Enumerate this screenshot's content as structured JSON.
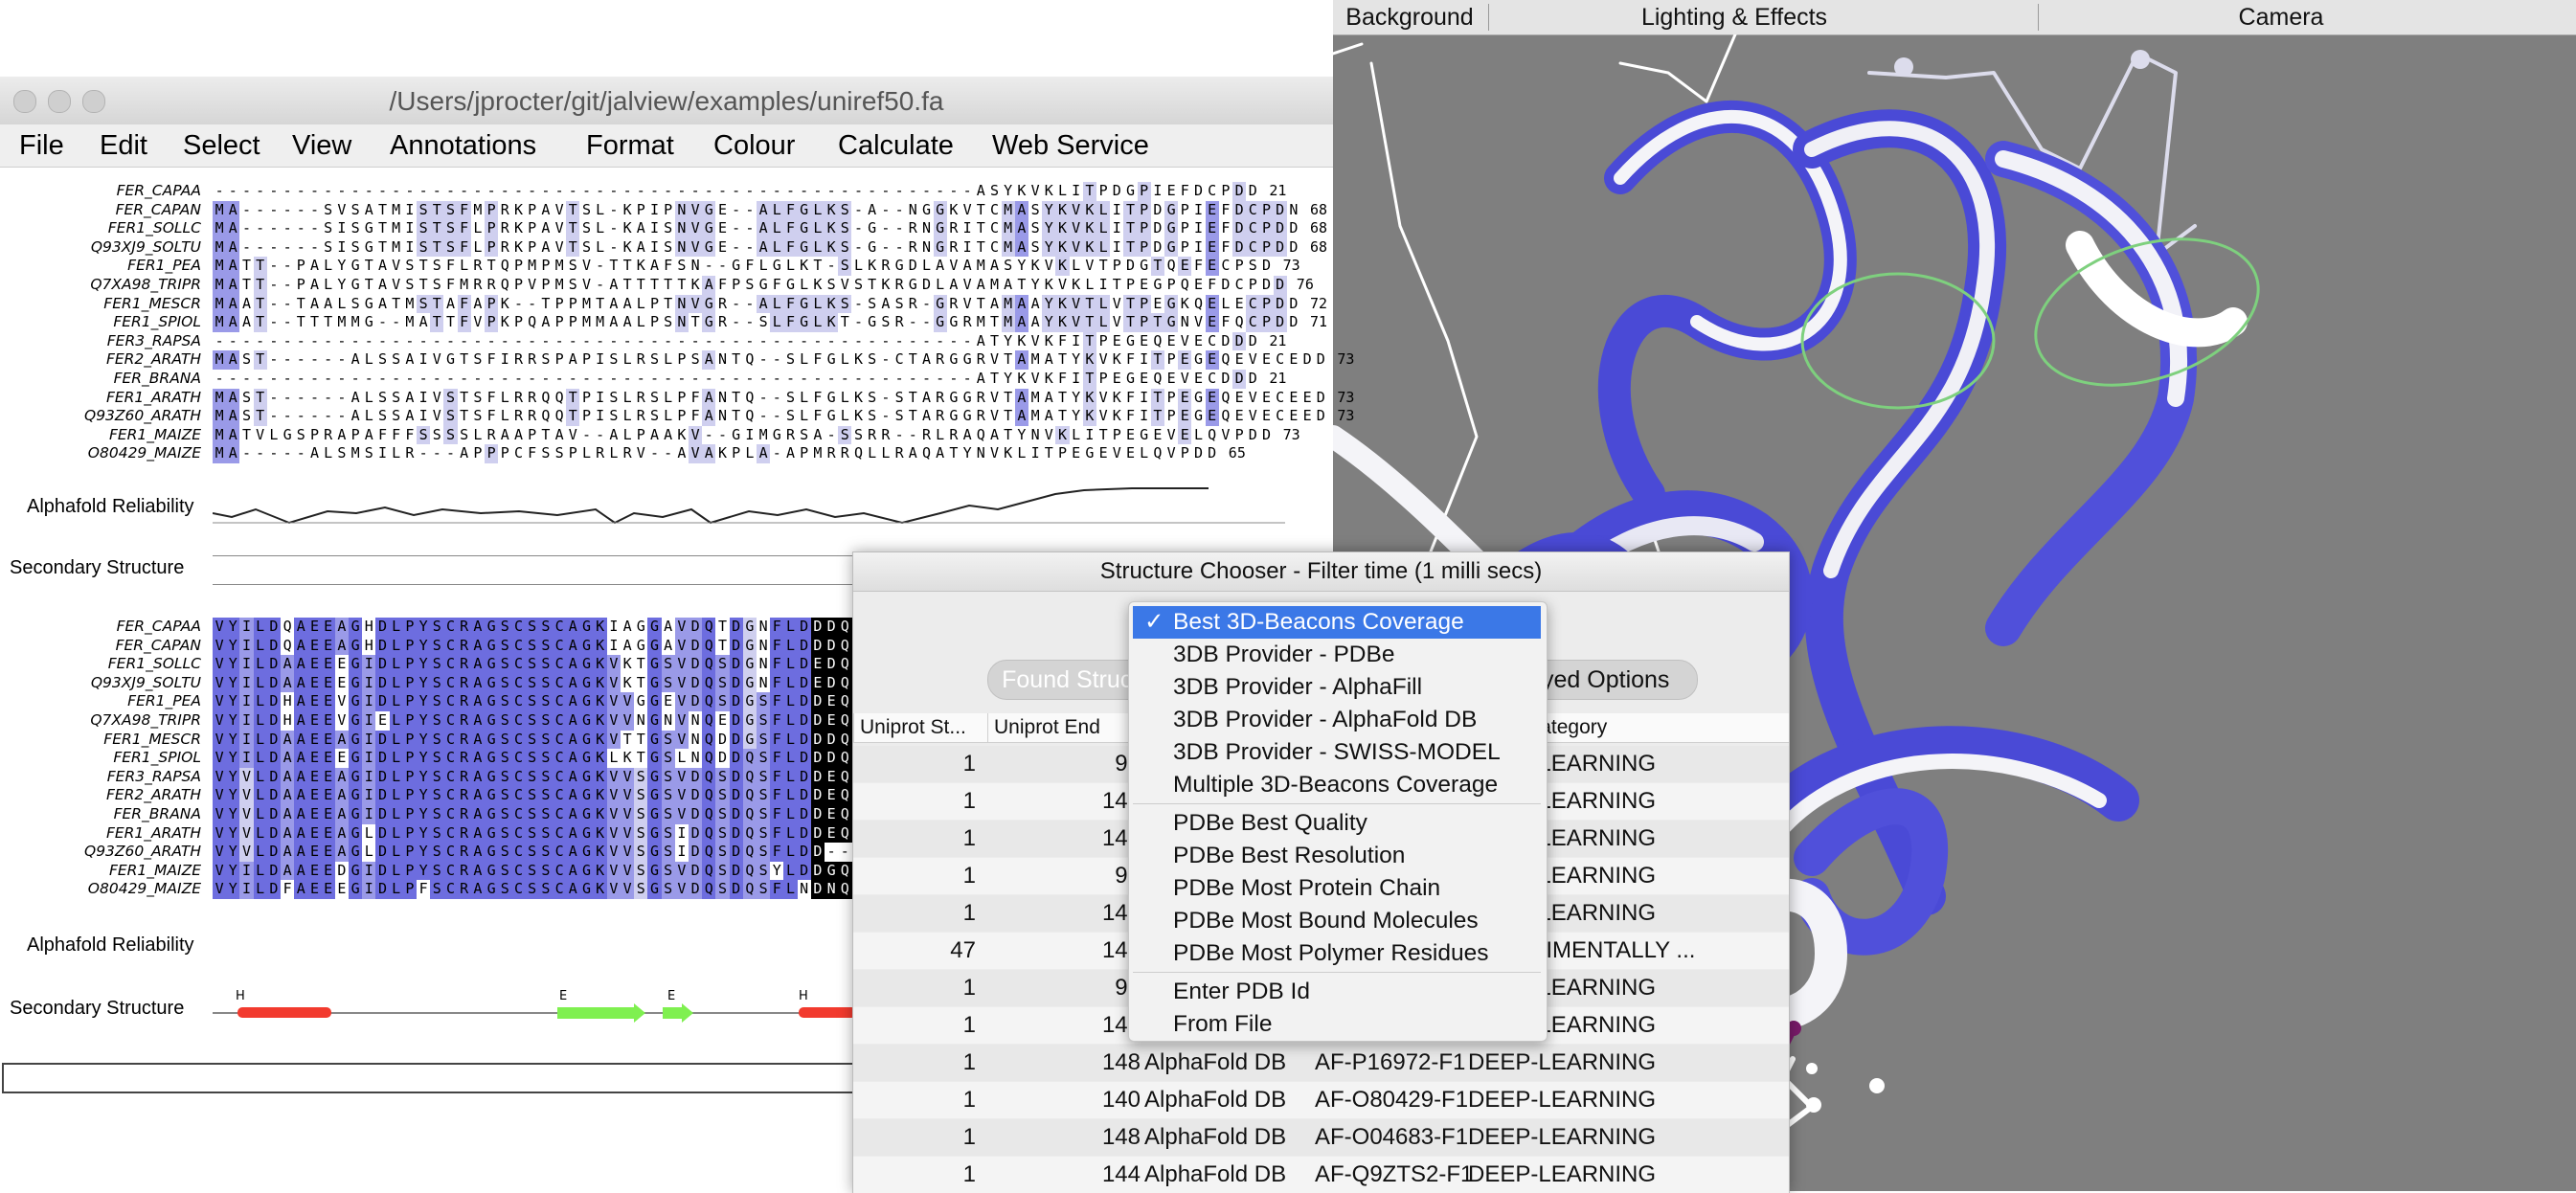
{
  "viewer": {
    "tabs": [
      "Background",
      "Lighting & Effects",
      "Camera"
    ],
    "colors": {
      "background": "#7f7f7f",
      "ribbon_blue": "#4a4ad6",
      "ribbon_white": "#f4f4f8",
      "highlight": "#7ed07e"
    }
  },
  "alignment_window": {
    "title": "/Users/jprocter/git/jalview/examples/uniref50.fa",
    "menu": [
      "File",
      "Edit",
      "Select",
      "View",
      "Annotations",
      "Format",
      "Colour",
      "Calculate",
      "Web Service"
    ],
    "block1": {
      "names": [
        "FER_CAPAA",
        "FER_CAPAN",
        "FER1_SOLLC",
        "Q93XJ9_SOLTU",
        "FER1_PEA",
        "Q7XA98_TRIPR",
        "FER1_MESCR",
        "FER1_SPIOL",
        "FER3_RAPSA",
        "FER2_ARATH",
        "FER_BRANA",
        "FER1_ARATH",
        "Q93Z60_ARATH",
        "FER1_MAIZE",
        "O80429_MAIZE"
      ],
      "rows": [
        "--------------------------------------------------------ASYKVKLITPDGPIEFDCPDD",
        "MA------SVSATMISTSFMPRKPAVTSL-KPIPNVGE--ALFGLKS-A--NGGKVTCMASYKVKLITPDGPIEFDCPDN",
        "MA------SISGTMISTSFLPRKPAVTSL-KAISNVGE--ALFGLKS-G--RNGRITCMASYKVKLITPDGPIEFDCPDD",
        "MA------SISGTMISTSFLPRKPAVTSL-KAISNVGE--ALFGLKS-G--RNGRITCMASYKVKLITPDGPIEFDCPDD",
        "MATT--PALYGTAVSTSFLRTQPMPMSV-TTKAFSN--GFLGLKT-SLKRGDLAVAMASYKVKLVTPDGTQEFECPSD",
        "MATT--PALYGTAVSTSFMRRQPVPMSV-ATTTTTKAFPSGFGLKSVSTKRGDLAVAMATYKVKLITPEGPQEFDCPDD",
        "MAAT--TAALSGATMSTAFAPK--TPPMTAALPTNVGR--ALFGLKS-SASR-GRVTAMAAYKVTLVTPEGKQELECPDD",
        "MAAT--TTTMMG--MATTFVPKPQAPPMMAALPSNTGR--SLFGLKT-GSR--GGRMTMAAYKVTLVTPTGNVEFQCPDD",
        "--------------------------------------------------------ATYKVKFITPEGEQEVECDDD",
        "MAST------ALSSAIVGTSFIRRSPAPISLRSLPSANTQ--SLFGLKS-CTARGGRVTAMATYKVKFITPEGEQEVECEDD",
        "--------------------------------------------------------ATYKVKFITPEGEQEVECDDD",
        "MAST------ALSSAIVSTSFLRRQQTPISLRSLPFANTQ--SLFGLKS-STARGGRVTAMATYKVKFITPEGEQEVECEED",
        "MAST------ALSSAIVSTSFLRRQQTPISLRSLPFANTQ--SLFGLKS-STARGGRVTAMATYKVKFITPEGEQEVECEED",
        "MATVLGSPRAPAFFFSSSSLRAAPTAV--ALPAAKV--GIMGRSA-SSRR--RLRAQATYNVKLITPEGEVELQVPDD",
        "MA-----ALSMSILR---APPPCFSSPLRLRV--AVAKPLA-APMRRQLLRAQATYNVKLITPEGEVELQVPDD"
      ],
      "ends": [
        "21",
        "68",
        "68",
        "68",
        "73",
        "76",
        "72",
        "71",
        "21",
        "73",
        "21",
        "73",
        "73",
        "73",
        "65"
      ]
    },
    "block2": {
      "names": [
        "FER_CAPAA",
        "FER_CAPAN",
        "FER1_SOLLC",
        "Q93XJ9_SOLTU",
        "FER1_PEA",
        "Q7XA98_TRIPR",
        "FER1_MESCR",
        "FER1_SPIOL",
        "FER3_RAPSA",
        "FER2_ARATH",
        "FER_BRANA",
        "FER1_ARATH",
        "Q93Z60_ARATH",
        "FER1_MAIZE",
        "O80429_MAIZE"
      ],
      "rows": [
        "VYILDQAEEAGHDLPYSCRAGSCSSCAGKIAGGAVDQTDGNFLDDDQL",
        "VYILDQAEEAGHDLPYSCRAGSCSSCAGKIAGGAVDQTDGNFLDDDQL",
        "VYILDAAEEEGIDLPYSCRAGSCSSCAGKVKTGSVDQSDGNFLDEDQE",
        "VYILDAAEEEGIDLPYSCRAGSCSSCAGKVKTGSVDQSDGNFLDEDQE",
        "VYILDHAEEVGIDLPYSCRAGSCSSCAGKVVGGEVDQSDGSFLDDEQI",
        "VYILDHAEEVGIELPYSCRAGSCSSCAGKVVNGNVNQEDGSFLDDEQI",
        "VYILDAAEEAGIDLPYSCRAGSCSSCAGKVTTGSVNQDDGSFLDDDQI",
        "VYILDAAEEEGIDLPYSCRAGSCSSCAGKLKTGSLNQDDQSFLDDDQI",
        "VYVLDAAEEAGIDLPYSCRAGSCSSCAGKVVSGSVDQSDQSFLDDEQI",
        "VYVLDAAEEAGIDLPYSCRAGSCSSCAGKVVSGSVDQSDQSFLDDEQI",
        "VYVLDAAEEAGIDLPYSCRAGSCSSCAGKVVSGSVDQSDQSFLDDEQI",
        "VYVLDAAEEAGLDLPYSCRAGSCSSCAGKVVSGSIDQSDQSFLDDEQM",
        "VYVLDAAEEAGLDLPYSCRAGSCSSCAGKVVSGSIDQSDQSFLDD----",
        "VYILDAAEEDGIDLPYSCRAGSCSSCAGKVVSGSVDQSDQSYLDDGQI",
        "VYILDFAEEEGIDLPFSCRAGSCSSCAGKVVSGSVDQSDQSFLNDNQV"
      ]
    },
    "annotations": {
      "alphafold_label": "Alphafold Reliability",
      "secondary_label": "Secondary Structure",
      "ss_marks": [
        "H",
        "E",
        "E",
        "H"
      ]
    },
    "colors": {
      "strong": "#6d6ddf",
      "medium": "#9a9ae8",
      "light": "#cfcfef",
      "black": "#000000"
    }
  },
  "chooser": {
    "title": "Structure Chooser - Filter time (1 milli secs)",
    "found_button": "Found Structures",
    "options_button": "Displayed Options",
    "columns": [
      "Uniprot St...",
      "Uniprot End",
      "",
      "",
      "Model Category"
    ],
    "rows": [
      {
        "start": "1",
        "end": "96",
        "provider": "",
        "model": "",
        "category": "DEEP-LEARNING"
      },
      {
        "start": "1",
        "end": "148",
        "provider": "",
        "model": "",
        "category": "DEEP-LEARNING"
      },
      {
        "start": "1",
        "end": "148",
        "provider": "",
        "model": "",
        "category": "DEEP-LEARNING"
      },
      {
        "start": "1",
        "end": "97",
        "provider": "",
        "model": "",
        "category": "DEEP-LEARNING"
      },
      {
        "start": "1",
        "end": "147",
        "provider": "",
        "model": "",
        "category": "DEEP-LEARNING"
      },
      {
        "start": "47",
        "end": "144",
        "provider": "",
        "model": "",
        "category": "EXPERIMENTALLY ..."
      },
      {
        "start": "1",
        "end": "96",
        "provider": "",
        "model": "",
        "category": "DEEP-LEARNING"
      },
      {
        "start": "1",
        "end": "144",
        "provider": "",
        "model": "",
        "category": "DEEP-LEARNING"
      },
      {
        "start": "1",
        "end": "148",
        "provider": "AlphaFold DB",
        "model": "AF-P16972-F1",
        "category": "DEEP-LEARNING"
      },
      {
        "start": "1",
        "end": "140",
        "provider": "AlphaFold DB",
        "model": "AF-O80429-F1",
        "category": "DEEP-LEARNING"
      },
      {
        "start": "1",
        "end": "148",
        "provider": "AlphaFold DB",
        "model": "AF-O04683-F1",
        "category": "DEEP-LEARNING"
      },
      {
        "start": "1",
        "end": "144",
        "provider": "AlphaFold DB",
        "model": "AF-Q9ZTS2-F1",
        "category": "DEEP-LEARNING"
      }
    ]
  },
  "dropdown": {
    "check": "✓",
    "groups": [
      [
        "Best 3D-Beacons Coverage",
        "3DB Provider - PDBe",
        "3DB Provider - AlphaFill",
        "3DB Provider - AlphaFold DB",
        "3DB Provider - SWISS-MODEL",
        "Multiple 3D-Beacons Coverage"
      ],
      [
        "PDBe Best Quality",
        "PDBe Best Resolution",
        "PDBe Most Protein Chain",
        "PDBe Most Bound Molecules",
        "PDBe Most Polymer Residues"
      ],
      [
        "Enter PDB Id",
        "From File"
      ]
    ],
    "selected": "Best 3D-Beacons Coverage"
  }
}
